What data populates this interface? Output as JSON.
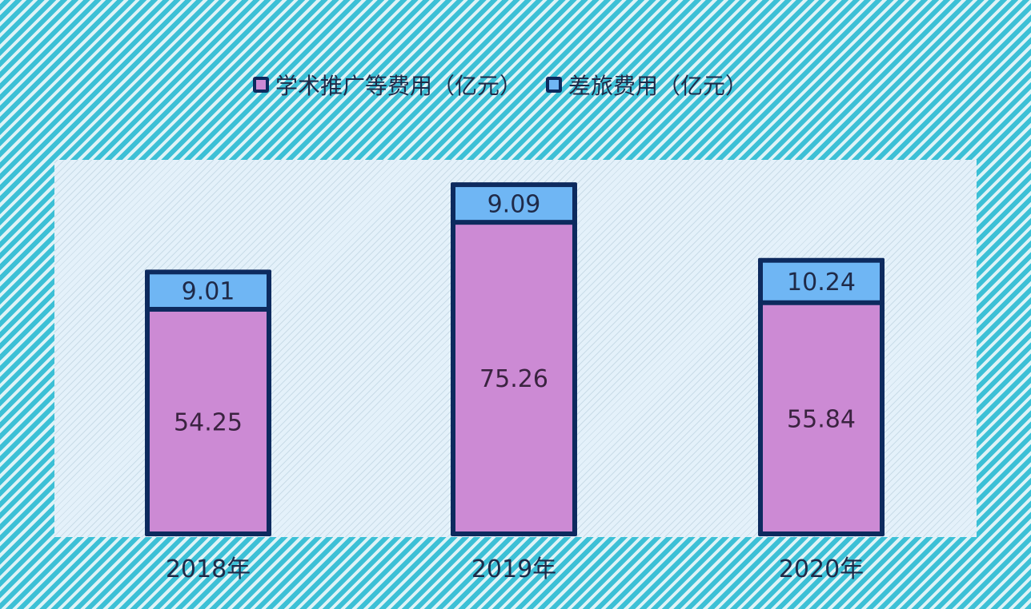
{
  "chart_data": {
    "type": "bar",
    "stacked": true,
    "categories": [
      "2018年",
      "2019年",
      "2020年"
    ],
    "series": [
      {
        "name": "学术推广等费用（亿元）",
        "values": [
          54.25,
          75.26,
          55.84
        ],
        "labels": [
          "54.25",
          "75.26",
          "55.84"
        ],
        "color": "#cc8ad4"
      },
      {
        "name": "差旅费用（亿元）",
        "values": [
          9.01,
          9.09,
          10.24
        ],
        "labels": [
          "9.01",
          "9.09",
          "10.24"
        ],
        "color": "#6fb6f4"
      }
    ],
    "legend_position": "top-center",
    "grid": false,
    "bar_border_color": "#0d2a5e",
    "ylim": [
      0,
      90
    ]
  }
}
